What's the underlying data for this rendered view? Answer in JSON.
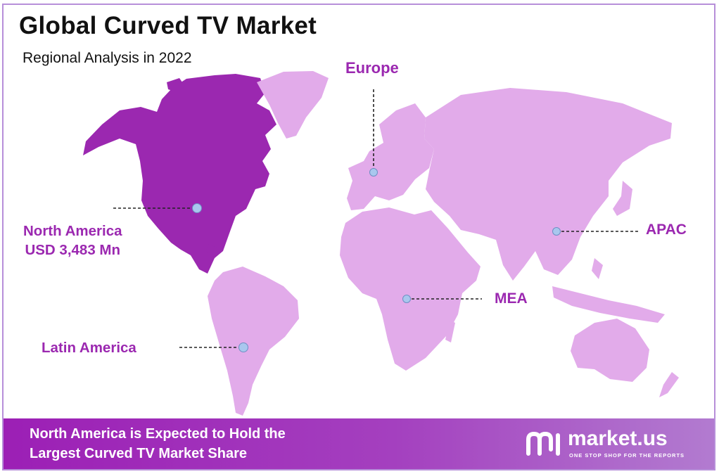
{
  "header": {
    "title": "Global Curved TV Market",
    "subtitle": "Regional Analysis in 2022"
  },
  "regions": [
    {
      "id": "north-america",
      "name": "North America",
      "value": "USD 3,483 Mn",
      "highlighted": true
    },
    {
      "id": "europe",
      "name": "Europe",
      "highlighted": false
    },
    {
      "id": "apac",
      "name": "APAC",
      "highlighted": false
    },
    {
      "id": "mea",
      "name": "MEA",
      "highlighted": false
    },
    {
      "id": "latin-america",
      "name": "Latin America",
      "highlighted": false
    }
  ],
  "footer": {
    "line1": "North America is Expected to Hold the",
    "line2": "Largest Curved TV Market Share"
  },
  "brand": {
    "name": "market.us",
    "tagline": "ONE STOP SHOP FOR THE REPORTS"
  },
  "colors": {
    "highlight": "#9b28b0",
    "region": "#e2abea",
    "marker": "#a9c7ee",
    "footer": "#9c1fb5",
    "frame": "#b78fd9"
  }
}
